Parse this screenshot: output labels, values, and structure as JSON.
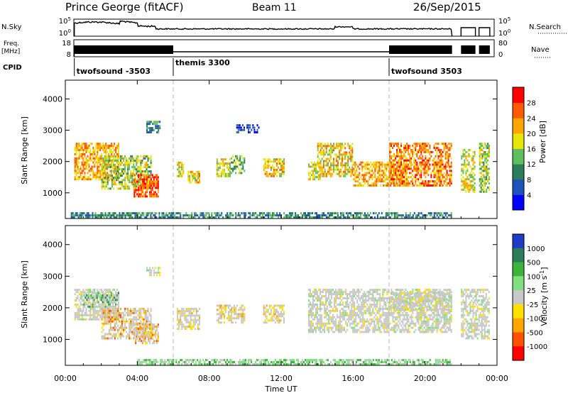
{
  "header": {
    "station": "Prince George (fitACF)",
    "beam": "Beam 11",
    "date": "26/Sep/2015"
  },
  "summary_panels": {
    "nsky_label": "N.Sky",
    "nsky_ticks": [
      "10^5",
      "10^0"
    ],
    "nsearch_label": "N.Search",
    "nsearch_ticks": [
      "10^5",
      "10^0"
    ],
    "freq_label_line1": "Freq.",
    "freq_label_line2": "[MHz]",
    "freq_ticks": [
      "18",
      "8"
    ],
    "nave_label": "Nave",
    "nave_ticks": [
      "80",
      "0"
    ],
    "cpid_label": "CPID",
    "cpid_segments": [
      {
        "label": "twofsound -3503",
        "start_h": 0.5,
        "end_h": 6.0
      },
      {
        "label": "themis 3300",
        "start_h": 6.0,
        "end_h": 18.0
      },
      {
        "label": "twofsound 3503",
        "start_h": 18.0,
        "end_h": 24.0
      }
    ]
  },
  "x_axis": {
    "label": "Time UT",
    "range_h": [
      0,
      24
    ],
    "ticks": [
      "00:00",
      "04:00",
      "08:00",
      "12:00",
      "16:00",
      "20:00",
      "00:00"
    ]
  },
  "chart_data": [
    {
      "type": "heatmap",
      "name": "power",
      "ylabel": "Slant Range [km]",
      "ylim": [
        180,
        4600
      ],
      "yticks": [
        "1000",
        "2000",
        "3000",
        "4000"
      ],
      "colorbar_label": "Power [dB]",
      "colorbar_ticks": [
        "4",
        "8",
        "12",
        "16",
        "20",
        "24",
        "28"
      ],
      "colorbar_range": [
        0,
        32
      ],
      "colors": [
        "#0000ff",
        "#1e50be",
        "#2e7d5a",
        "#5fbf5f",
        "#e6e60a",
        "#ffa500",
        "#ff5a00",
        "#ff0000"
      ],
      "blobs": [
        {
          "t0": 0.5,
          "t1": 3.0,
          "r0": 1400,
          "r1": 2600,
          "p": 22
        },
        {
          "t0": 2.0,
          "t1": 4.8,
          "r0": 1100,
          "r1": 2200,
          "p": 16
        },
        {
          "t0": 3.8,
          "t1": 5.2,
          "r0": 850,
          "r1": 1600,
          "p": 26
        },
        {
          "t0": 4.5,
          "t1": 5.3,
          "r0": 2900,
          "r1": 3300,
          "p": 10
        },
        {
          "t0": 6.2,
          "t1": 6.6,
          "r0": 1500,
          "r1": 2000,
          "p": 18
        },
        {
          "t0": 6.8,
          "t1": 7.5,
          "r0": 1300,
          "r1": 1700,
          "p": 20
        },
        {
          "t0": 8.4,
          "t1": 9.2,
          "r0": 1500,
          "r1": 2100,
          "p": 18
        },
        {
          "t0": 9.2,
          "t1": 10.0,
          "r0": 1600,
          "r1": 2200,
          "p": 14
        },
        {
          "t0": 11.0,
          "t1": 12.2,
          "r0": 1500,
          "r1": 2100,
          "p": 20
        },
        {
          "t0": 13.5,
          "t1": 14.2,
          "r0": 1400,
          "r1": 2000,
          "p": 18
        },
        {
          "t0": 14.0,
          "t1": 16.0,
          "r0": 1500,
          "r1": 2600,
          "p": 20
        },
        {
          "t0": 16.0,
          "t1": 19.0,
          "r0": 1200,
          "r1": 2000,
          "p": 22
        },
        {
          "t0": 18.0,
          "t1": 21.5,
          "r0": 1200,
          "r1": 2600,
          "p": 24
        },
        {
          "t0": 9.5,
          "t1": 10.8,
          "r0": 2900,
          "r1": 3200,
          "p": 6
        },
        {
          "t0": 22.0,
          "t1": 22.8,
          "r0": 1000,
          "r1": 2400,
          "p": 18
        },
        {
          "t0": 23.0,
          "t1": 23.6,
          "r0": 1000,
          "r1": 2600,
          "p": 16
        },
        {
          "t0": 0.3,
          "t1": 21.5,
          "r0": 180,
          "r1": 380,
          "p": 10
        }
      ]
    },
    {
      "type": "heatmap",
      "name": "velocity",
      "ylabel": "Slant Range [km]",
      "ylim": [
        180,
        4600
      ],
      "yticks": [
        "1000",
        "2000",
        "3000",
        "4000"
      ],
      "colorbar_label": "Velocity [m s^-1]",
      "colorbar_ticks": [
        "1000",
        "500",
        "100",
        "25",
        "-25",
        "-100",
        "-500",
        "-1000"
      ],
      "colors": [
        "#1e3cc8",
        "#2e7d5a",
        "#3cb43c",
        "#80e080",
        "#c8c8c8",
        "#ffe000",
        "#ffa500",
        "#ff5000",
        "#ff0000"
      ],
      "blobs": [
        {
          "t0": 0.5,
          "t1": 3.0,
          "r0": 1600,
          "r1": 2600,
          "v": 4
        },
        {
          "t0": 1.0,
          "t1": 3.0,
          "r0": 2000,
          "r1": 2500,
          "v": 2
        },
        {
          "t0": 2.0,
          "t1": 4.8,
          "r0": 1000,
          "r1": 2000,
          "v": 6
        },
        {
          "t0": 3.8,
          "t1": 5.2,
          "r0": 850,
          "r1": 1500,
          "v": 6
        },
        {
          "t0": 4.5,
          "t1": 5.3,
          "r0": 3000,
          "r1": 3300,
          "v": 4
        },
        {
          "t0": 6.2,
          "t1": 7.5,
          "r0": 1300,
          "r1": 2000,
          "v": 5
        },
        {
          "t0": 8.4,
          "t1": 10.0,
          "r0": 1500,
          "r1": 2100,
          "v": 5
        },
        {
          "t0": 11.0,
          "t1": 12.2,
          "r0": 1500,
          "r1": 2100,
          "v": 5
        },
        {
          "t0": 13.5,
          "t1": 21.5,
          "r0": 1200,
          "r1": 2600,
          "v": 4
        },
        {
          "t0": 18.0,
          "t1": 21.5,
          "r0": 1900,
          "r1": 2500,
          "v": 4
        },
        {
          "t0": 22.0,
          "t1": 23.6,
          "r0": 1000,
          "r1": 2600,
          "v": 4
        },
        {
          "t0": 4.0,
          "t1": 21.5,
          "r0": 180,
          "r1": 380,
          "v": 3
        }
      ]
    }
  ]
}
